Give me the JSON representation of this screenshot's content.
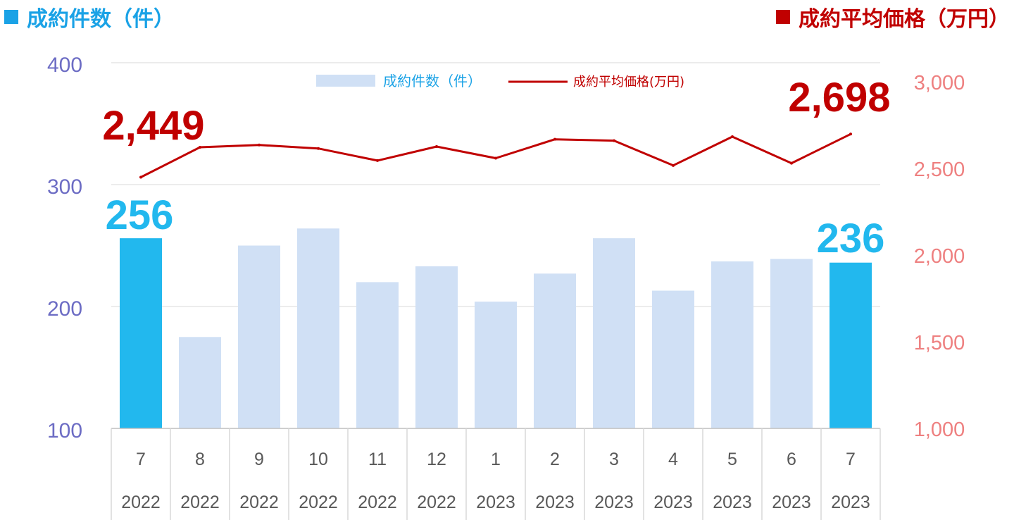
{
  "headers": {
    "left_text": "成約件数（件）",
    "right_text": "成約平均価格（万円）"
  },
  "colors": {
    "bar_light": "#d0e0f5",
    "bar_highlight": "#22b8ee",
    "line": "#c00000",
    "left_header": "#1aa2e6",
    "right_header": "#c00000",
    "left_axis_text": "#6c6cc4",
    "right_axis_text": "#ee8080",
    "grid": "#d9d9d9",
    "category_text": "#595959"
  },
  "chart_data": {
    "type": "bar",
    "categories": [
      "7",
      "8",
      "9",
      "10",
      "11",
      "12",
      "1",
      "2",
      "3",
      "4",
      "5",
      "6",
      "7"
    ],
    "years": [
      "2022",
      "2022",
      "2022",
      "2022",
      "2022",
      "2022",
      "2023",
      "2023",
      "2023",
      "2023",
      "2023",
      "2023",
      "2023"
    ],
    "series": [
      {
        "name": "成約件数（件）",
        "type": "bar",
        "axis": "left",
        "values": [
          256,
          175,
          250,
          264,
          220,
          233,
          204,
          227,
          256,
          213,
          237,
          239,
          236
        ]
      },
      {
        "name": "成約平均価格(万円)",
        "type": "line",
        "axis": "right",
        "values": [
          2449,
          2622,
          2635,
          2615,
          2545,
          2626,
          2559,
          2668,
          2660,
          2517,
          2683,
          2530,
          2698
        ]
      }
    ],
    "highlight_indices": [
      0,
      12
    ],
    "annotations": {
      "bar_first": "256",
      "bar_last": "236",
      "line_first": "2,449",
      "line_last": "2,698"
    },
    "left_axis": {
      "min": 100,
      "max": 400,
      "ticks": [
        "100",
        "200",
        "300",
        "400"
      ]
    },
    "right_axis": {
      "min": 1000,
      "max": 3000,
      "ticks": [
        "1,000",
        "1,500",
        "2,000",
        "2,500",
        "3,000"
      ]
    },
    "legend": {
      "position": "top-center"
    },
    "grid": true
  }
}
